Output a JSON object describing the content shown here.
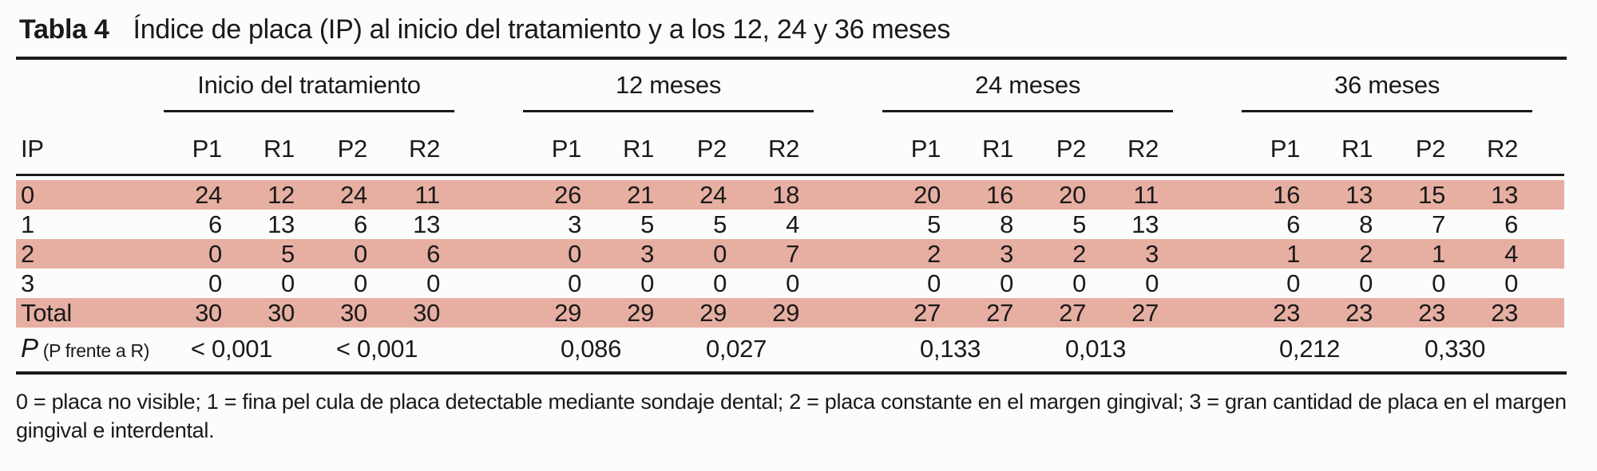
{
  "title": {
    "label": "Tabla 4",
    "text": "Índice de placa (IP) al inicio del tratamiento y a los 12, 24 y 36 meses"
  },
  "table": {
    "row_header": "IP",
    "groups": [
      {
        "label": "Inicio del tratamiento",
        "columns": [
          "P1",
          "R1",
          "P2",
          "R2"
        ]
      },
      {
        "label": "12 meses",
        "columns": [
          "P1",
          "R1",
          "P2",
          "R2"
        ]
      },
      {
        "label": "24 meses",
        "columns": [
          "P1",
          "R1",
          "P2",
          "R2"
        ]
      },
      {
        "label": "36 meses",
        "columns": [
          "P1",
          "R1",
          "P2",
          "R2"
        ]
      }
    ],
    "rows": [
      {
        "label": "0",
        "shaded": true,
        "values": [
          24,
          12,
          24,
          11,
          26,
          21,
          24,
          18,
          20,
          16,
          20,
          11,
          16,
          13,
          15,
          13
        ]
      },
      {
        "label": "1",
        "shaded": false,
        "values": [
          6,
          13,
          6,
          13,
          3,
          5,
          5,
          4,
          5,
          8,
          5,
          13,
          6,
          8,
          7,
          6
        ]
      },
      {
        "label": "2",
        "shaded": true,
        "values": [
          0,
          5,
          0,
          6,
          0,
          3,
          0,
          7,
          2,
          3,
          2,
          3,
          1,
          2,
          1,
          4
        ]
      },
      {
        "label": "3",
        "shaded": false,
        "values": [
          0,
          0,
          0,
          0,
          0,
          0,
          0,
          0,
          0,
          0,
          0,
          0,
          0,
          0,
          0,
          0
        ]
      },
      {
        "label": "Total",
        "shaded": true,
        "values": [
          30,
          30,
          30,
          30,
          29,
          29,
          29,
          29,
          27,
          27,
          27,
          27,
          23,
          23,
          23,
          23
        ]
      }
    ],
    "p_row": {
      "label_main": "P",
      "label_sub": "(P frente a R)",
      "values": [
        "< 0,001",
        "< 0,001",
        "0,086",
        "0,027",
        "0,133",
        "0,013",
        "0,212",
        "0,330"
      ]
    }
  },
  "footnote": "0 = placa no visible; 1 = fina pel cula de placa detectable mediante sondaje dental; 2 = placa constante en el margen gingival; 3 = gran cantidad de placa en el margen gingival e interdental.",
  "colors": {
    "row_shade": "#e7afa2",
    "rule": "#1a1a1a",
    "text": "#1a1a1a"
  }
}
